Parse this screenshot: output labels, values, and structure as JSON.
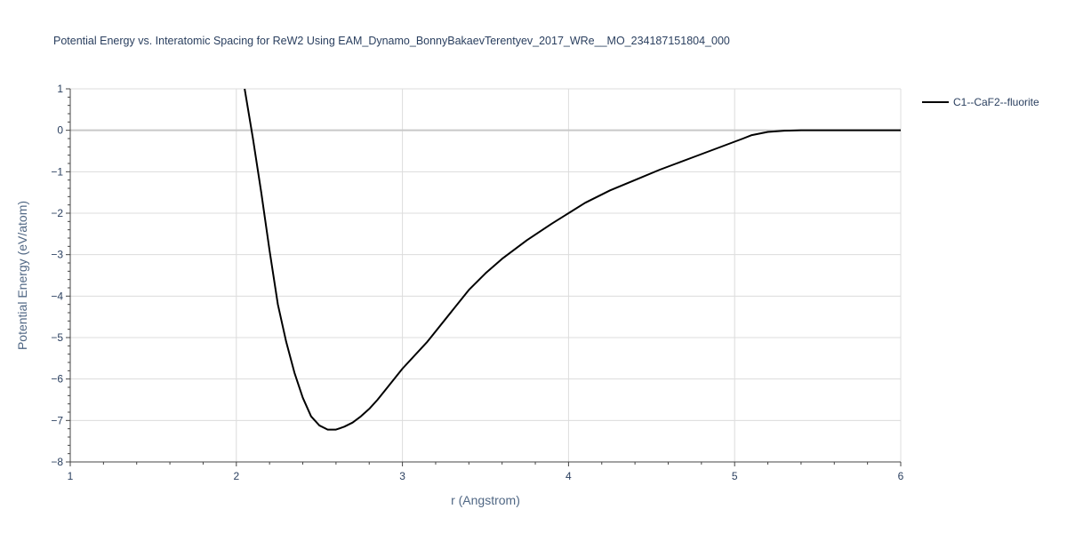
{
  "chart_data": {
    "type": "line",
    "title": "Potential Energy vs. Interatomic Spacing for ReW2 Using EAM_Dynamo_BonnyBakaevTerentyev_2017_WRe__MO_234187151804_000",
    "xlabel": "r (Angstrom)",
    "ylabel": "Potential Energy (eV/atom)",
    "xlim": [
      1,
      6
    ],
    "ylim": [
      -8,
      1
    ],
    "xticks": [
      1,
      2,
      3,
      4,
      5,
      6
    ],
    "yticks": [
      1,
      0,
      -1,
      -2,
      -3,
      -4,
      -5,
      -6,
      -7,
      -8
    ],
    "xtick_labels": [
      "1",
      "2",
      "3",
      "4",
      "5",
      "6"
    ],
    "ytick_labels": [
      "1",
      "0",
      "−1",
      "−2",
      "−3",
      "−4",
      "−5",
      "−6",
      "−7",
      "−8"
    ],
    "grid": true,
    "legend_position": "top-right",
    "series": [
      {
        "name": "C1--CaF2--fluorite",
        "color": "#000000",
        "x": [
          2.05,
          2.1,
          2.15,
          2.2,
          2.25,
          2.3,
          2.35,
          2.4,
          2.45,
          2.5,
          2.55,
          2.6,
          2.65,
          2.7,
          2.75,
          2.8,
          2.85,
          2.9,
          3.0,
          3.15,
          3.3,
          3.4,
          3.5,
          3.6,
          3.75,
          3.9,
          4.0,
          4.1,
          4.25,
          4.4,
          4.55,
          4.65,
          4.75,
          4.85,
          4.95,
          5.05,
          5.1,
          5.2,
          5.3,
          5.4,
          5.6,
          6.0
        ],
        "y": [
          1.0,
          -0.2,
          -1.5,
          -2.9,
          -4.2,
          -5.1,
          -5.85,
          -6.45,
          -6.9,
          -7.12,
          -7.22,
          -7.22,
          -7.15,
          -7.05,
          -6.9,
          -6.72,
          -6.5,
          -6.25,
          -5.75,
          -5.1,
          -4.35,
          -3.85,
          -3.45,
          -3.1,
          -2.65,
          -2.25,
          -2.0,
          -1.75,
          -1.45,
          -1.2,
          -0.95,
          -0.8,
          -0.65,
          -0.5,
          -0.35,
          -0.2,
          -0.12,
          -0.04,
          -0.01,
          0.0,
          0.0,
          0.0
        ]
      }
    ]
  }
}
